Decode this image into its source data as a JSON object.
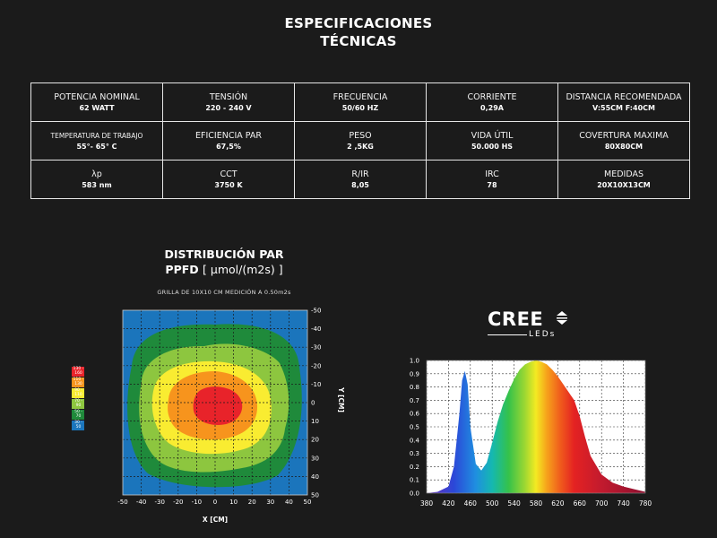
{
  "title": {
    "line1": "ESPECIFICACIONES",
    "line2": "TÉCNICAS"
  },
  "specs": [
    [
      {
        "label": "POTENCIA NOMINAL",
        "value": "62 WATT"
      },
      {
        "label": "TENSIÓN",
        "value": "220 - 240 V"
      },
      {
        "label": "FRECUENCIA",
        "value": "50/60 HZ"
      },
      {
        "label": "CORRIENTE",
        "value": "0,29A"
      },
      {
        "label": "DISTANCIA RECOMENDADA",
        "value": "V:55CM F:40CM"
      }
    ],
    [
      {
        "label": "TEMPERATURA DE TRABAJO",
        "value": "55°- 65° C"
      },
      {
        "label": "EFICIENCIA PAR",
        "value": "67,5%"
      },
      {
        "label": "PESO",
        "value": "2 ,5KG"
      },
      {
        "label": "VIDA ÚTIL",
        "value": "50.000 HS"
      },
      {
        "label": "COVERTURA MAXIMA",
        "value": "80X80CM"
      }
    ],
    [
      {
        "label": "λp",
        "value": "583 nm"
      },
      {
        "label": "CCT",
        "value": "3750 K"
      },
      {
        "label": "R/IR",
        "value": "8,05"
      },
      {
        "label": "IRC",
        "value": "78"
      },
      {
        "label": "MEDIDAS",
        "value": "20X10X13CM"
      }
    ]
  ],
  "distribution": {
    "title": "DISTRIBUCIÓN PAR",
    "subtitle_bold": "PPFD",
    "subtitle_unit": "[ µmol/(m2s) ]",
    "grid_caption": "GRILLA DE 10X10 CM MEDICIÓN A 0.50m2s"
  },
  "legend": [
    {
      "label": "130 - 160",
      "color": "#e8232a"
    },
    {
      "label": "110 - 130",
      "color": "#f7941d"
    },
    {
      "label": "90 - 110",
      "color": "#f9ec31"
    },
    {
      "label": "70 - 90",
      "color": "#8dc63f"
    },
    {
      "label": "50 - 70",
      "color": "#1f8a3b"
    },
    {
      "label": "30 - 50",
      "color": "#1b75bc"
    }
  ],
  "heatmap": {
    "x_ticks": [
      "-50",
      "-40",
      "-30",
      "-20",
      "-10",
      "0",
      "10",
      "20",
      "30",
      "40",
      "50"
    ],
    "y_ticks": [
      "-50",
      "-40",
      "-30",
      "-20",
      "-10",
      "0",
      "10",
      "20",
      "30",
      "40",
      "50"
    ],
    "x_label": "X [CM]",
    "y_label": "Y [CM]"
  },
  "cree": {
    "word": "CREE",
    "sub": "LEDs"
  },
  "chart_data": {
    "type": "area",
    "title": "",
    "xlabel": "",
    "ylabel": "",
    "x_ticks": [
      "380",
      "420",
      "460",
      "500",
      "540",
      "580",
      "620",
      "660",
      "700",
      "740",
      "780"
    ],
    "y_ticks": [
      "0.0",
      "0.1",
      "0.2",
      "0.3",
      "0.4",
      "0.5",
      "0.6",
      "0.7",
      "0.8",
      "0.9",
      "1.0"
    ],
    "xlim": [
      380,
      780
    ],
    "ylim": [
      0,
      1
    ],
    "grid": true,
    "x": [
      380,
      400,
      420,
      430,
      440,
      445,
      450,
      455,
      460,
      470,
      480,
      490,
      500,
      510,
      520,
      530,
      540,
      550,
      560,
      570,
      580,
      590,
      600,
      610,
      620,
      630,
      640,
      650,
      660,
      670,
      680,
      700,
      720,
      740,
      760,
      780
    ],
    "values": [
      0.0,
      0.01,
      0.05,
      0.2,
      0.6,
      0.85,
      0.92,
      0.82,
      0.5,
      0.22,
      0.17,
      0.23,
      0.38,
      0.54,
      0.67,
      0.77,
      0.86,
      0.93,
      0.97,
      0.99,
      1.0,
      0.99,
      0.97,
      0.93,
      0.88,
      0.82,
      0.76,
      0.7,
      0.58,
      0.42,
      0.28,
      0.14,
      0.08,
      0.05,
      0.03,
      0.01
    ]
  }
}
